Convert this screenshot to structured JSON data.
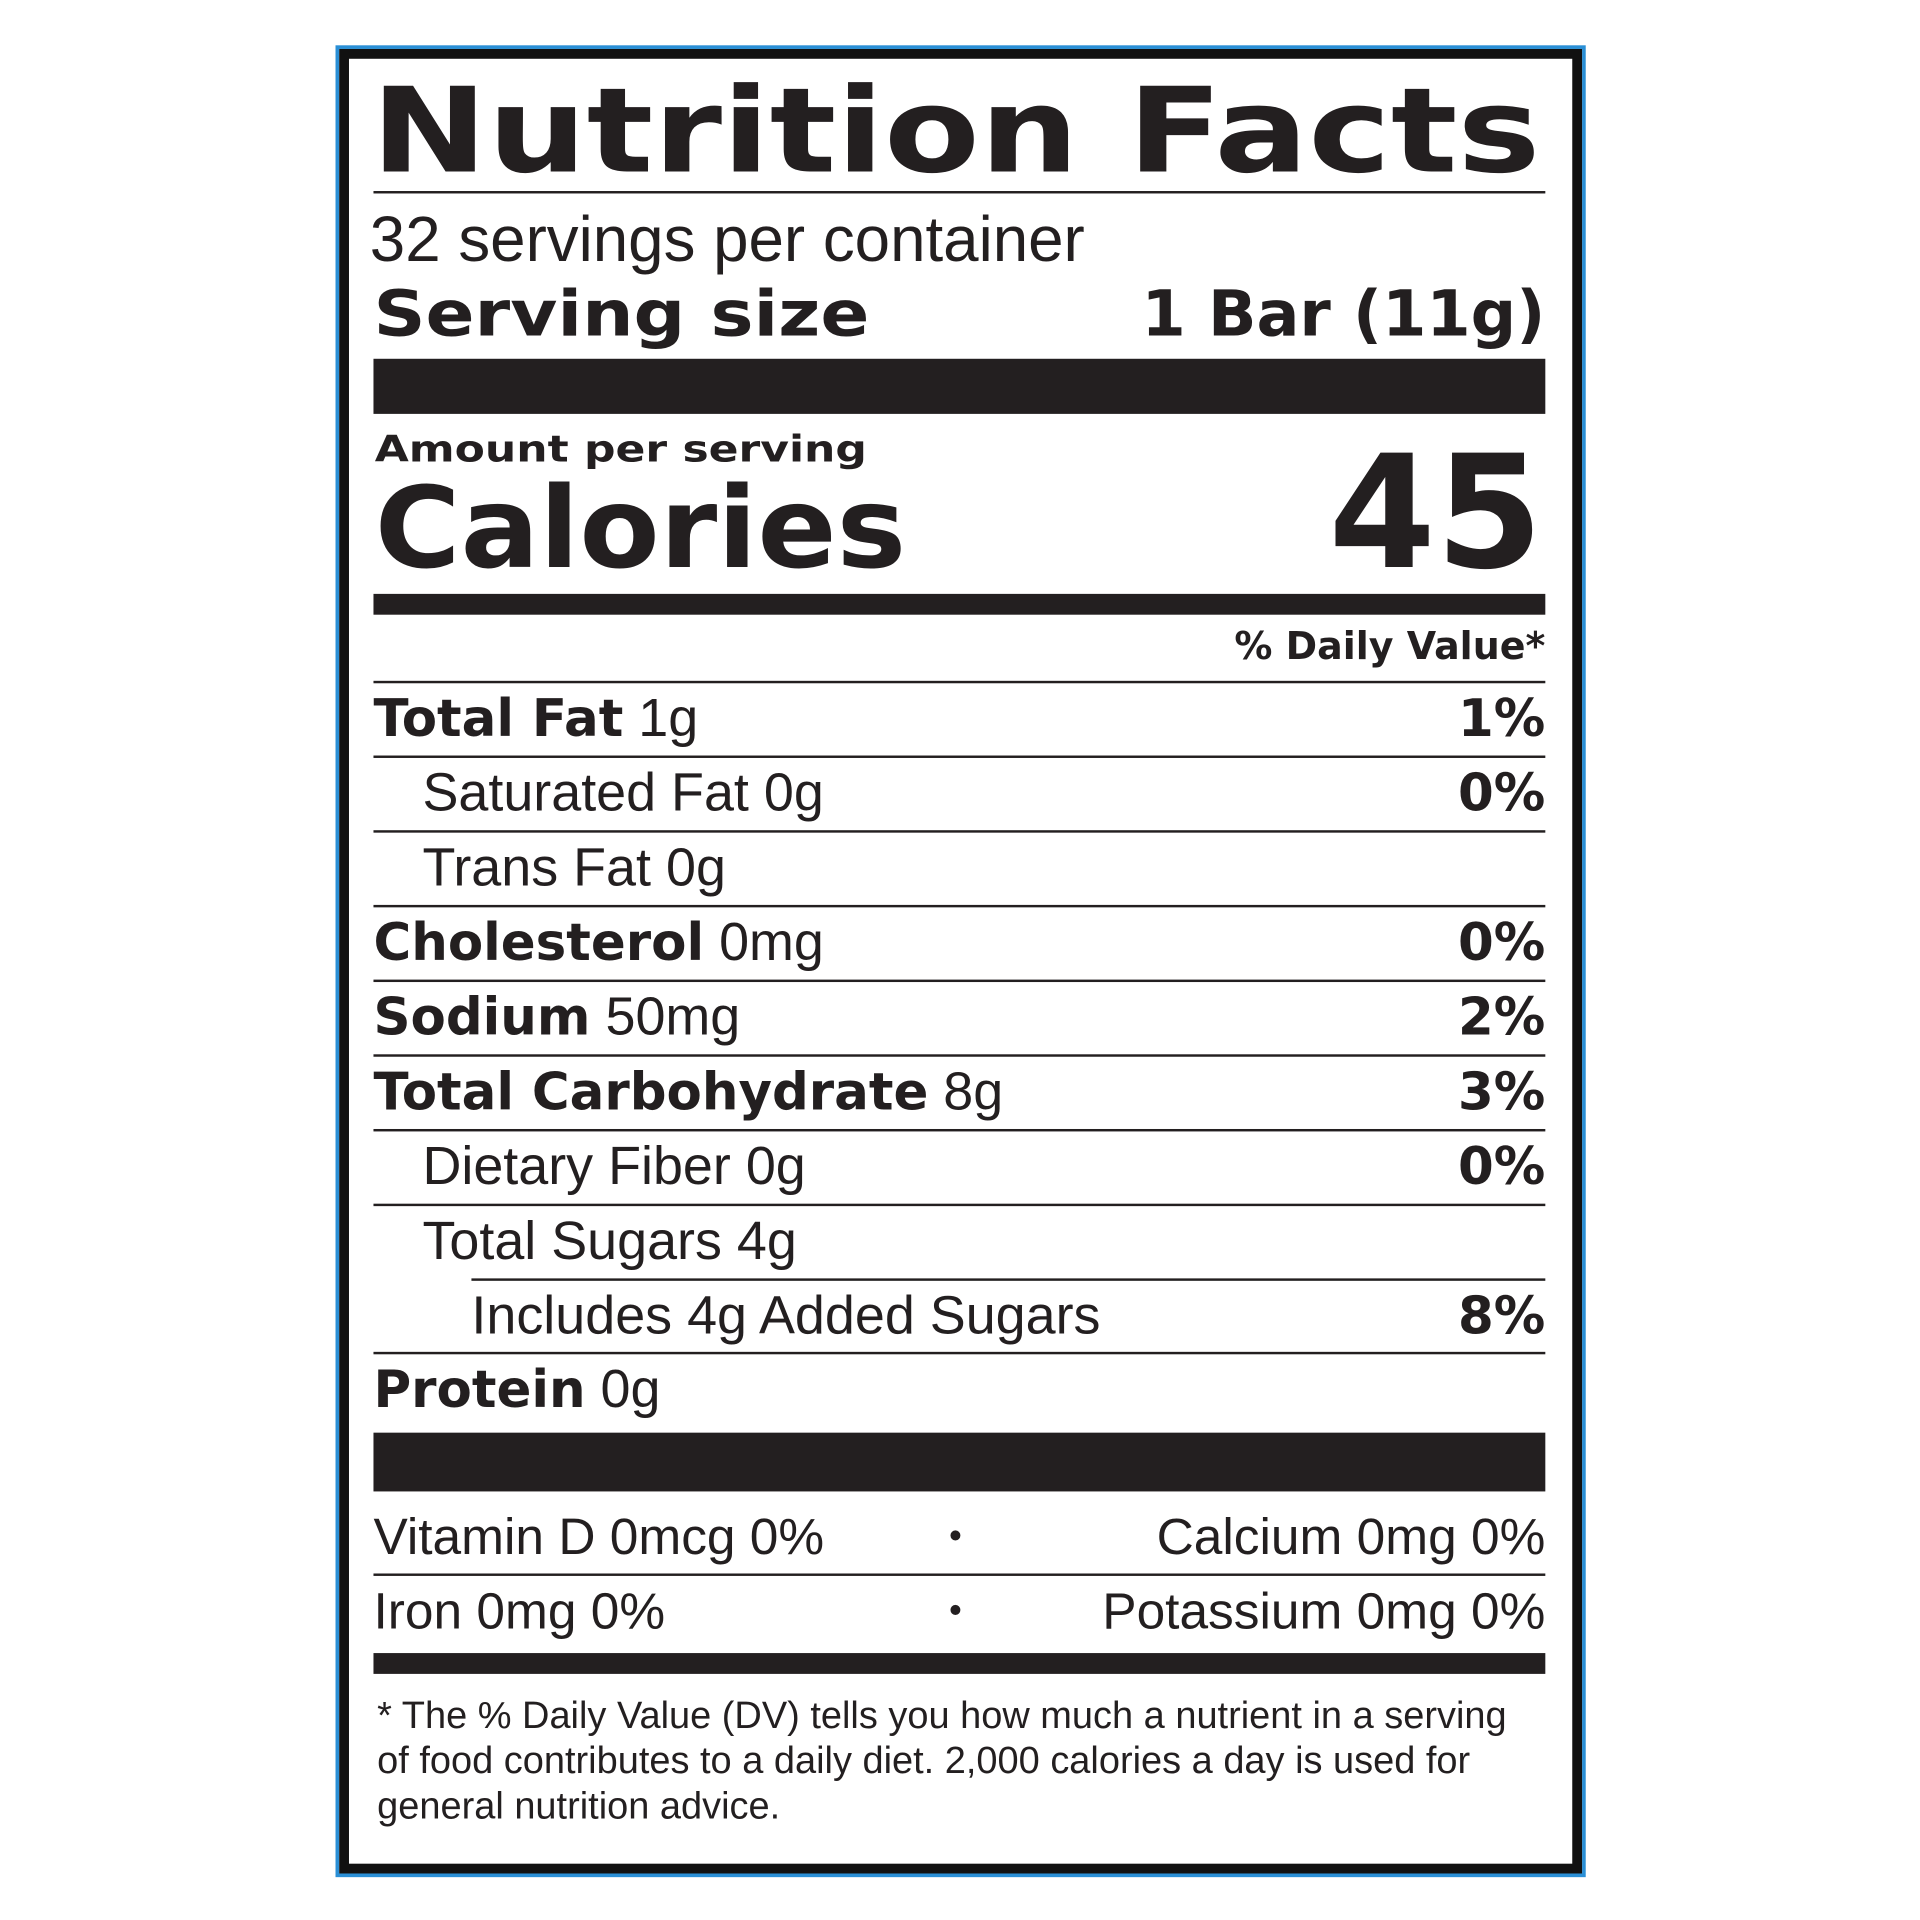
{
  "label": {
    "title": "Nutrition Facts",
    "servings_per_container": "32 servings per container",
    "serving_size_label": "Serving size",
    "serving_size_value": "1 Bar (11g)",
    "amount_per_serving": "Amount per serving",
    "calories_label": "Calories",
    "calories_value": "45",
    "daily_value_header": "% Daily Value*",
    "nutrients": [
      {
        "name": "Total Fat",
        "amount": "1g",
        "dv": "1%"
      },
      {
        "name": "Saturated Fat",
        "amount": "0g",
        "dv": "0%"
      },
      {
        "name": "Trans Fat",
        "amount": "0g",
        "dv": ""
      },
      {
        "name": "Cholesterol",
        "amount": "0mg",
        "dv": "0%"
      },
      {
        "name": "Sodium",
        "amount": "50mg",
        "dv": "2%"
      },
      {
        "name": "Total Carbohydrate",
        "amount": "8g",
        "dv": "3%"
      },
      {
        "name": "Dietary Fiber",
        "amount": "0g",
        "dv": "0%"
      },
      {
        "name": "Total Sugars",
        "amount": "4g",
        "dv": ""
      },
      {
        "name": "Includes 4g Added Sugars",
        "amount": "",
        "dv": "8%"
      },
      {
        "name": "Protein",
        "amount": "0g",
        "dv": ""
      }
    ],
    "vitamins": [
      {
        "left": "Vitamin D 0mcg 0%",
        "right": "Calcium 0mg 0%"
      },
      {
        "left": "Iron 0mg 0%",
        "right": "Potassium 0mg 0%"
      }
    ],
    "separator": "•",
    "footnote": "* The % Daily Value (DV) tells you how much a nutrient in a serving of food contributes to a daily diet. 2,000 calories a day is used for general nutrition advice.",
    "colors": {
      "border_accent": "#2a8fd6",
      "ink": "#231f20"
    }
  }
}
